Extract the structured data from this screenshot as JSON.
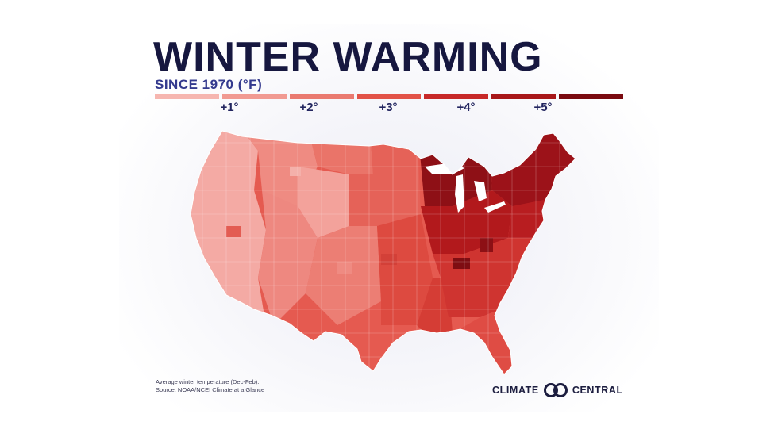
{
  "title": "WINTER WARMING",
  "subtitle": "SINCE 1970 (°F)",
  "legend": {
    "colors": [
      "#f6b6b0",
      "#f19a92",
      "#ea7a70",
      "#e25247",
      "#c72828",
      "#a81719",
      "#7a0a10"
    ],
    "ticks": [
      "+1°",
      "+2°",
      "+3°",
      "+4°",
      "+5°"
    ]
  },
  "footnote": {
    "line1": "Average winter temperature (Dec-Feb).",
    "line2": "Source: NOAA/NCEI Climate at a Glance"
  },
  "logo": {
    "left": "CLIMATE",
    "right": "CENTRAL",
    "icon": "climate-central-rings-icon"
  }
}
